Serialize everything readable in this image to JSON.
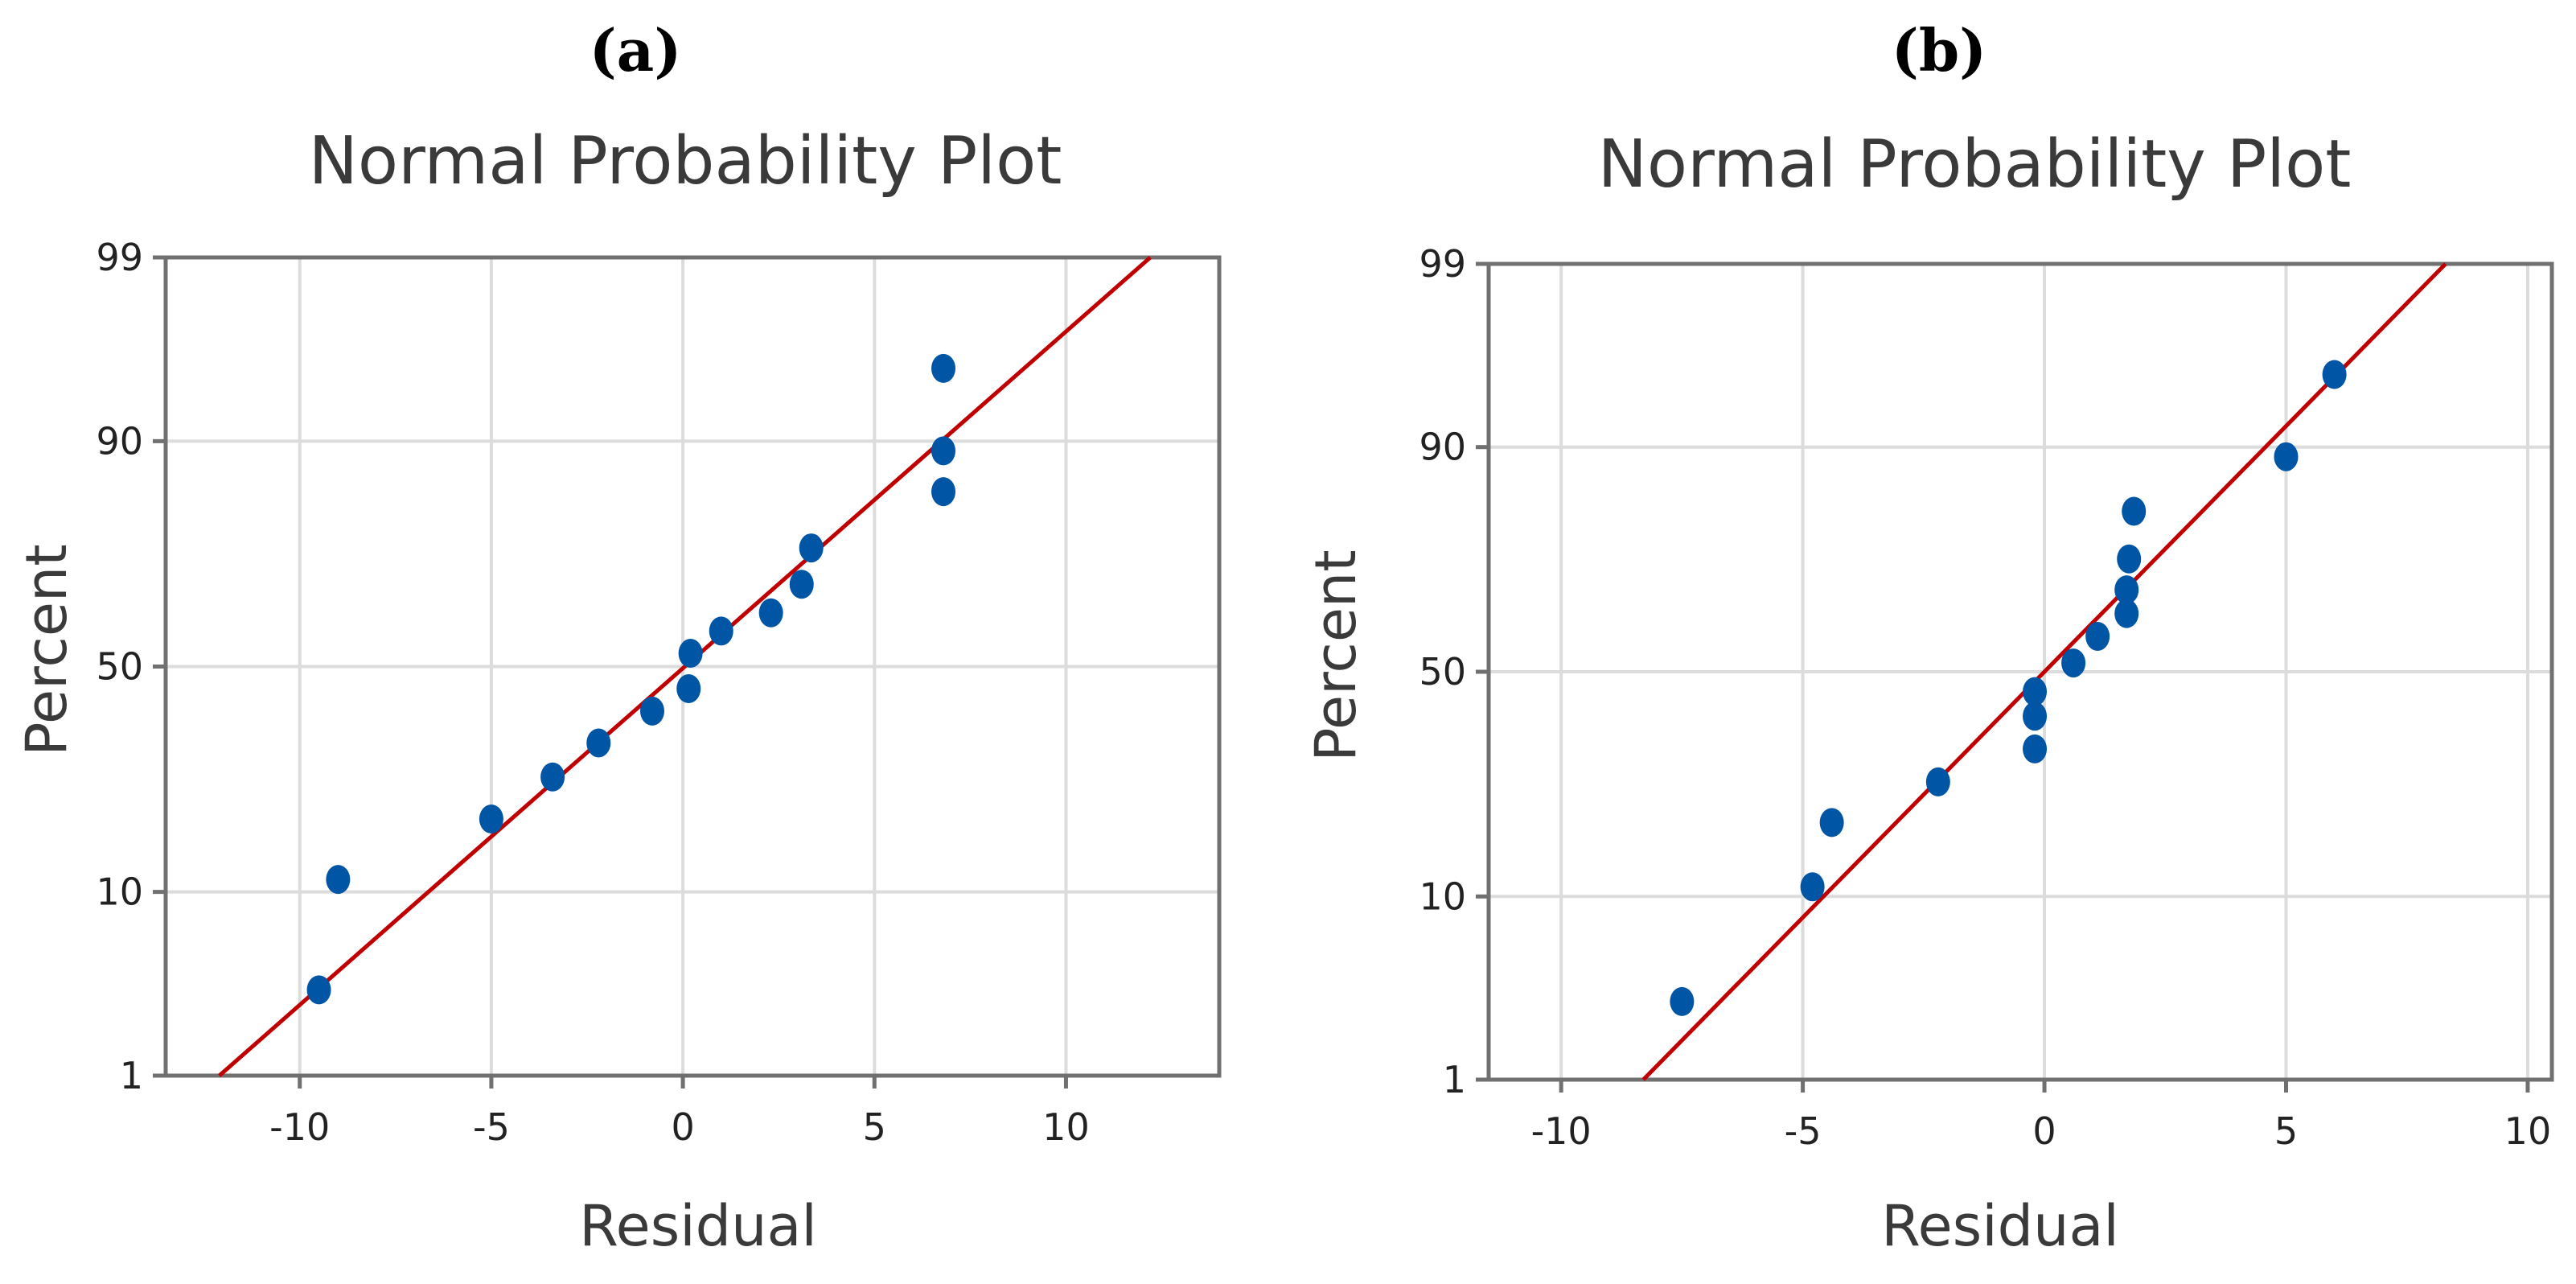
{
  "chart_data": [
    {
      "type": "scatter",
      "panel_label": "(a)",
      "title": "Normal Probability Plot",
      "xlabel": "Residual",
      "ylabel": "Percent",
      "xlim": [
        -13.5,
        14
      ],
      "ylim": [
        1,
        99
      ],
      "xticks": [
        -10,
        -5,
        0,
        5,
        10
      ],
      "yticks": [
        1,
        10,
        50,
        90,
        99
      ],
      "grid": true,
      "colors": {
        "points": "#0055a5",
        "fit_line": "#c00000",
        "frame": "#707070",
        "grid": "#dcdcdc"
      },
      "fit_line": {
        "x": [
          -12.1,
          12.2
        ],
        "y": [
          1,
          99
        ]
      },
      "points": [
        {
          "x": -9.5,
          "y": 3.3
        },
        {
          "x": -9.0,
          "y": 11.3
        },
        {
          "x": -5.0,
          "y": 19.3
        },
        {
          "x": -3.4,
          "y": 26.5
        },
        {
          "x": -2.2,
          "y": 33.2
        },
        {
          "x": -0.8,
          "y": 40.0
        },
        {
          "x": 0.15,
          "y": 45.0
        },
        {
          "x": 0.2,
          "y": 53.0
        },
        {
          "x": 1.0,
          "y": 58.0
        },
        {
          "x": 2.3,
          "y": 62.0
        },
        {
          "x": 3.1,
          "y": 68.0
        },
        {
          "x": 3.35,
          "y": 75.0
        },
        {
          "x": 6.8,
          "y": 84.0
        },
        {
          "x": 6.8,
          "y": 89.0
        },
        {
          "x": 6.8,
          "y": 95.5
        }
      ]
    },
    {
      "type": "scatter",
      "panel_label": "(b)",
      "title": "Normal Probability Plot",
      "xlabel": "Residual",
      "ylabel": "Percent",
      "xlim": [
        -11.5,
        10.5
      ],
      "ylim": [
        1,
        99
      ],
      "xticks": [
        -10,
        -5,
        0,
        5,
        10
      ],
      "yticks": [
        1,
        10,
        50,
        90,
        99
      ],
      "grid": true,
      "colors": {
        "points": "#0055a5",
        "fit_line": "#c00000",
        "frame": "#707070",
        "grid": "#dcdcdc"
      },
      "fit_line": {
        "x": [
          -8.3,
          8.3
        ],
        "y": [
          1,
          99
        ]
      },
      "points": [
        {
          "x": -7.5,
          "y": 3.0
        },
        {
          "x": -4.8,
          "y": 11.0
        },
        {
          "x": -4.4,
          "y": 19.5
        },
        {
          "x": -2.2,
          "y": 26.5
        },
        {
          "x": -0.2,
          "y": 33.0
        },
        {
          "x": -0.2,
          "y": 40.0
        },
        {
          "x": -0.2,
          "y": 45.5
        },
        {
          "x": 0.6,
          "y": 52.0
        },
        {
          "x": 1.1,
          "y": 58.0
        },
        {
          "x": 1.7,
          "y": 63.0
        },
        {
          "x": 1.7,
          "y": 68.0
        },
        {
          "x": 1.75,
          "y": 74.0
        },
        {
          "x": 1.85,
          "y": 82.0
        },
        {
          "x": 5.0,
          "y": 89.0
        },
        {
          "x": 6.0,
          "y": 95.5
        }
      ]
    }
  ]
}
